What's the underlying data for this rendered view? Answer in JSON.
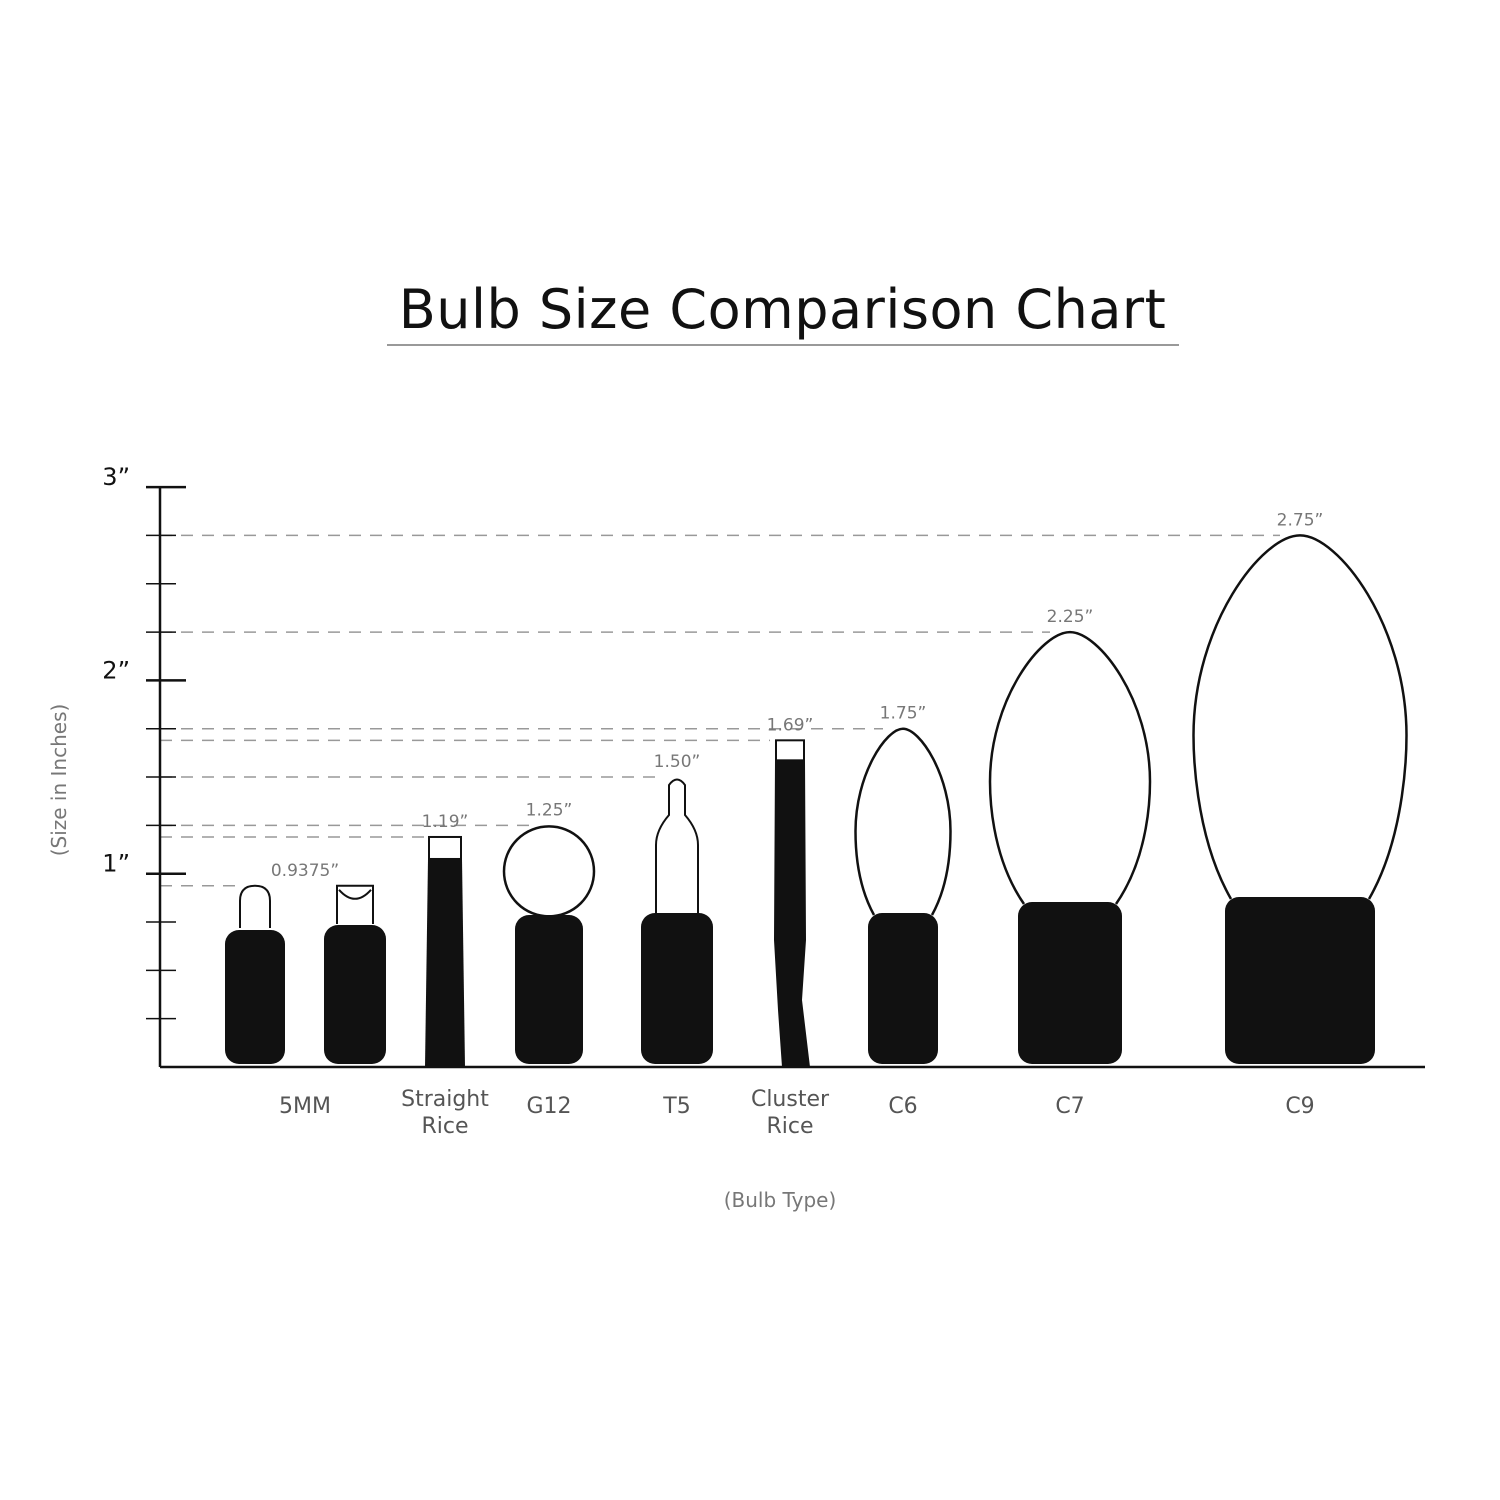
{
  "chart_data": {
    "type": "bar",
    "title": "Bulb Size Comparison Chart",
    "xlabel": "(Bulb Type)",
    "ylabel": "(Size in Inches)",
    "ylim": [
      0,
      3
    ],
    "yticks": [
      {
        "value": 1,
        "label": "1”"
      },
      {
        "value": 2,
        "label": "2”"
      },
      {
        "value": 3,
        "label": "3”"
      }
    ],
    "minor_tick_step": 0.25,
    "grid": "dashed reference lines at each bulb height",
    "categories": [
      {
        "name": "5MM",
        "lines": [
          "5MM"
        ],
        "value": 0.9375,
        "value_label": "0.9375”"
      },
      {
        "name": "Straight Rice",
        "lines": [
          "Straight",
          "Rice"
        ],
        "value": 1.19,
        "value_label": "1.19”"
      },
      {
        "name": "G12",
        "lines": [
          "G12"
        ],
        "value": 1.25,
        "value_label": "1.25”"
      },
      {
        "name": "T5",
        "lines": [
          "T5"
        ],
        "value": 1.5,
        "value_label": "1.50”"
      },
      {
        "name": "Cluster Rice",
        "lines": [
          "Cluster",
          "Rice"
        ],
        "value": 1.69,
        "value_label": "1.69”"
      },
      {
        "name": "C6",
        "lines": [
          "C6"
        ],
        "value": 1.75,
        "value_label": "1.75”"
      },
      {
        "name": "C7",
        "lines": [
          "C7"
        ],
        "value": 2.25,
        "value_label": "2.25”"
      },
      {
        "name": "C9",
        "lines": [
          "C9"
        ],
        "value": 2.75,
        "value_label": "2.75”"
      }
    ]
  },
  "colors": {
    "bulb_base": "#111111",
    "outline": "#111111",
    "gridline": "#999999",
    "label": "#777777"
  }
}
